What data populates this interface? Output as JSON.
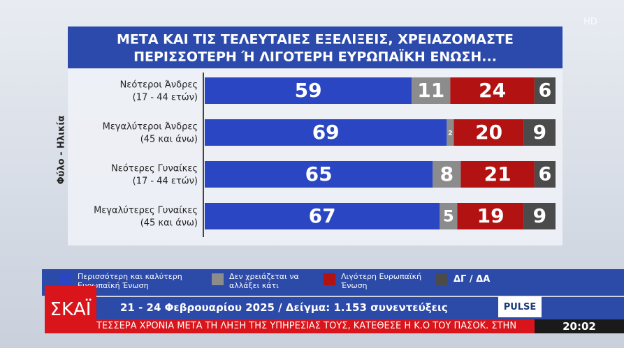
{
  "chart_data": {
    "type": "stacked-bar-horizontal",
    "title": [
      "ΜΕΤΑ ΚΑΙ ΤΙΣ ΤΕΛΕΥΤΑΙΕΣ ΕΞΕΛΙΞΕΙΣ, ΧΡΕΙΑΖΟΜΑΣΤΕ",
      "ΠΕΡΙΣΣΟΤΕΡΗ Ή ΛΙΓΟΤΕΡΗ ΕΥΡΩΠΑΪΚΗ ΕΝΩΣΗ..."
    ],
    "y_label": "Φύλο - Ηλικία",
    "categories": [
      "Νεότεροι Άνδρες",
      "Μεγαλύτεροι Άνδρες",
      "Νεότερες Γυναίκες",
      "Μεγαλύτερες Γυναίκες"
    ],
    "category_notes": [
      "(17 - 44 ετών)",
      "(45 και άνω)",
      "(17 - 44 ετών)",
      "(45 και άνω)"
    ],
    "series": [
      {
        "name": "Περισσότερη και καλύτερη Ευρωπαϊκή Ένωση",
        "color": "#2b46c2",
        "values": [
          59,
          69,
          65,
          67
        ]
      },
      {
        "name": "Δεν χρειάζεται να αλλάξει κάτι",
        "color": "#8c8c8c",
        "values": [
          11,
          2,
          8,
          5
        ]
      },
      {
        "name": "Λιγότερη Ευρωπαϊκή Ένωση",
        "color": "#b31212",
        "values": [
          24,
          20,
          21,
          19
        ]
      },
      {
        "name": "ΔΓ / ΔΑ",
        "color": "#4b4b4b",
        "values": [
          6,
          9,
          6,
          9
        ]
      }
    ],
    "xlim": [
      0,
      100
    ]
  },
  "broadcast": {
    "quality": "HD",
    "channel": "ΣΚΑΪ",
    "info": "21 - 24 Φεβρουαρίου 2025 / Δείγμα: 1.153 συνεντεύξεις",
    "pollster": "PULSE",
    "ticker": "ΤΕΣΣΕΡΑ ΧΡΟΝΙΑ ΜΕΤΑ ΤΗ ΛΗΞΗ ΤΗΣ ΥΠΗΡΕΣΙΑΣ ΤΟΥΣ, ΚΑΤΕΘΕΣΕ Η Κ.Ο ΤΟΥ ΠΑΣΟΚ. ΣΤΗΝ",
    "time": "20:02"
  }
}
